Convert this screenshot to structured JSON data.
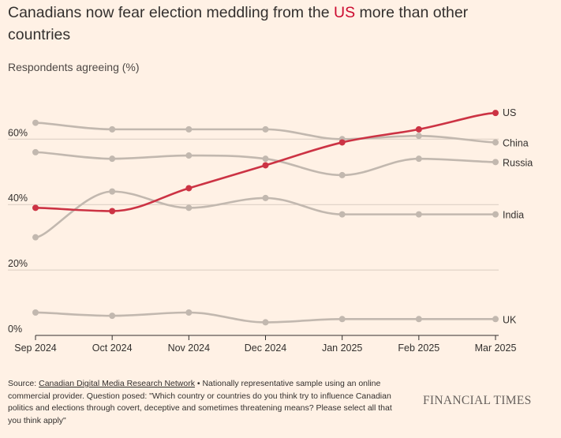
{
  "header": {
    "title_before": "Canadians now fear election meddling from the ",
    "title_highlight": "US",
    "title_after": " more than other countries",
    "subtitle": "Respondents agreeing (%)"
  },
  "footer": {
    "source_prefix": "Source: ",
    "source_link": "Canadian Digital Media Research Network",
    "source_note": " • Nationally representative sample using an online commercial provider. Question posed: \"Which country or countries do you think try to influence Canadian politics and elections through covert, deceptive and sometimes threatening means? Please select all that you think apply\"",
    "brand": "FINANCIAL TIMES"
  },
  "colors": {
    "background": "#FFF1E5",
    "highlight": "#CC3344",
    "muted": "#C2B8AF",
    "gridline": "#D9CCC1",
    "baseline": "#33302E"
  },
  "chart_data": {
    "type": "line",
    "title": "Canadians now fear election meddling from the US more than other countries",
    "ylabel": "Respondents agreeing (%)",
    "x": [
      "Sep 2024",
      "Oct 2024",
      "Nov 2024",
      "Dec 2024",
      "Jan 2025",
      "Feb 2025",
      "Mar 2025"
    ],
    "ylim": [
      0,
      75
    ],
    "yticks": [
      0,
      20,
      40,
      60
    ],
    "ytick_labels": [
      "0%",
      "20%",
      "40%",
      "60%"
    ],
    "grid": true,
    "legend": "direct-labels-right",
    "series": [
      {
        "name": "China",
        "values": [
          65,
          63,
          63,
          63,
          60,
          61,
          59
        ],
        "color": "#C2B8AF"
      },
      {
        "name": "Russia",
        "values": [
          56,
          54,
          55,
          54,
          49,
          54,
          53
        ],
        "color": "#C2B8AF"
      },
      {
        "name": "India",
        "values": [
          30,
          44,
          39,
          42,
          37,
          37,
          37
        ],
        "color": "#C2B8AF"
      },
      {
        "name": "UK",
        "values": [
          7,
          6,
          7,
          4,
          5,
          5,
          5
        ],
        "color": "#C2B8AF"
      },
      {
        "name": "US",
        "values": [
          39,
          38,
          45,
          52,
          59,
          63,
          68
        ],
        "color": "#CC3344",
        "highlight": true
      }
    ]
  }
}
